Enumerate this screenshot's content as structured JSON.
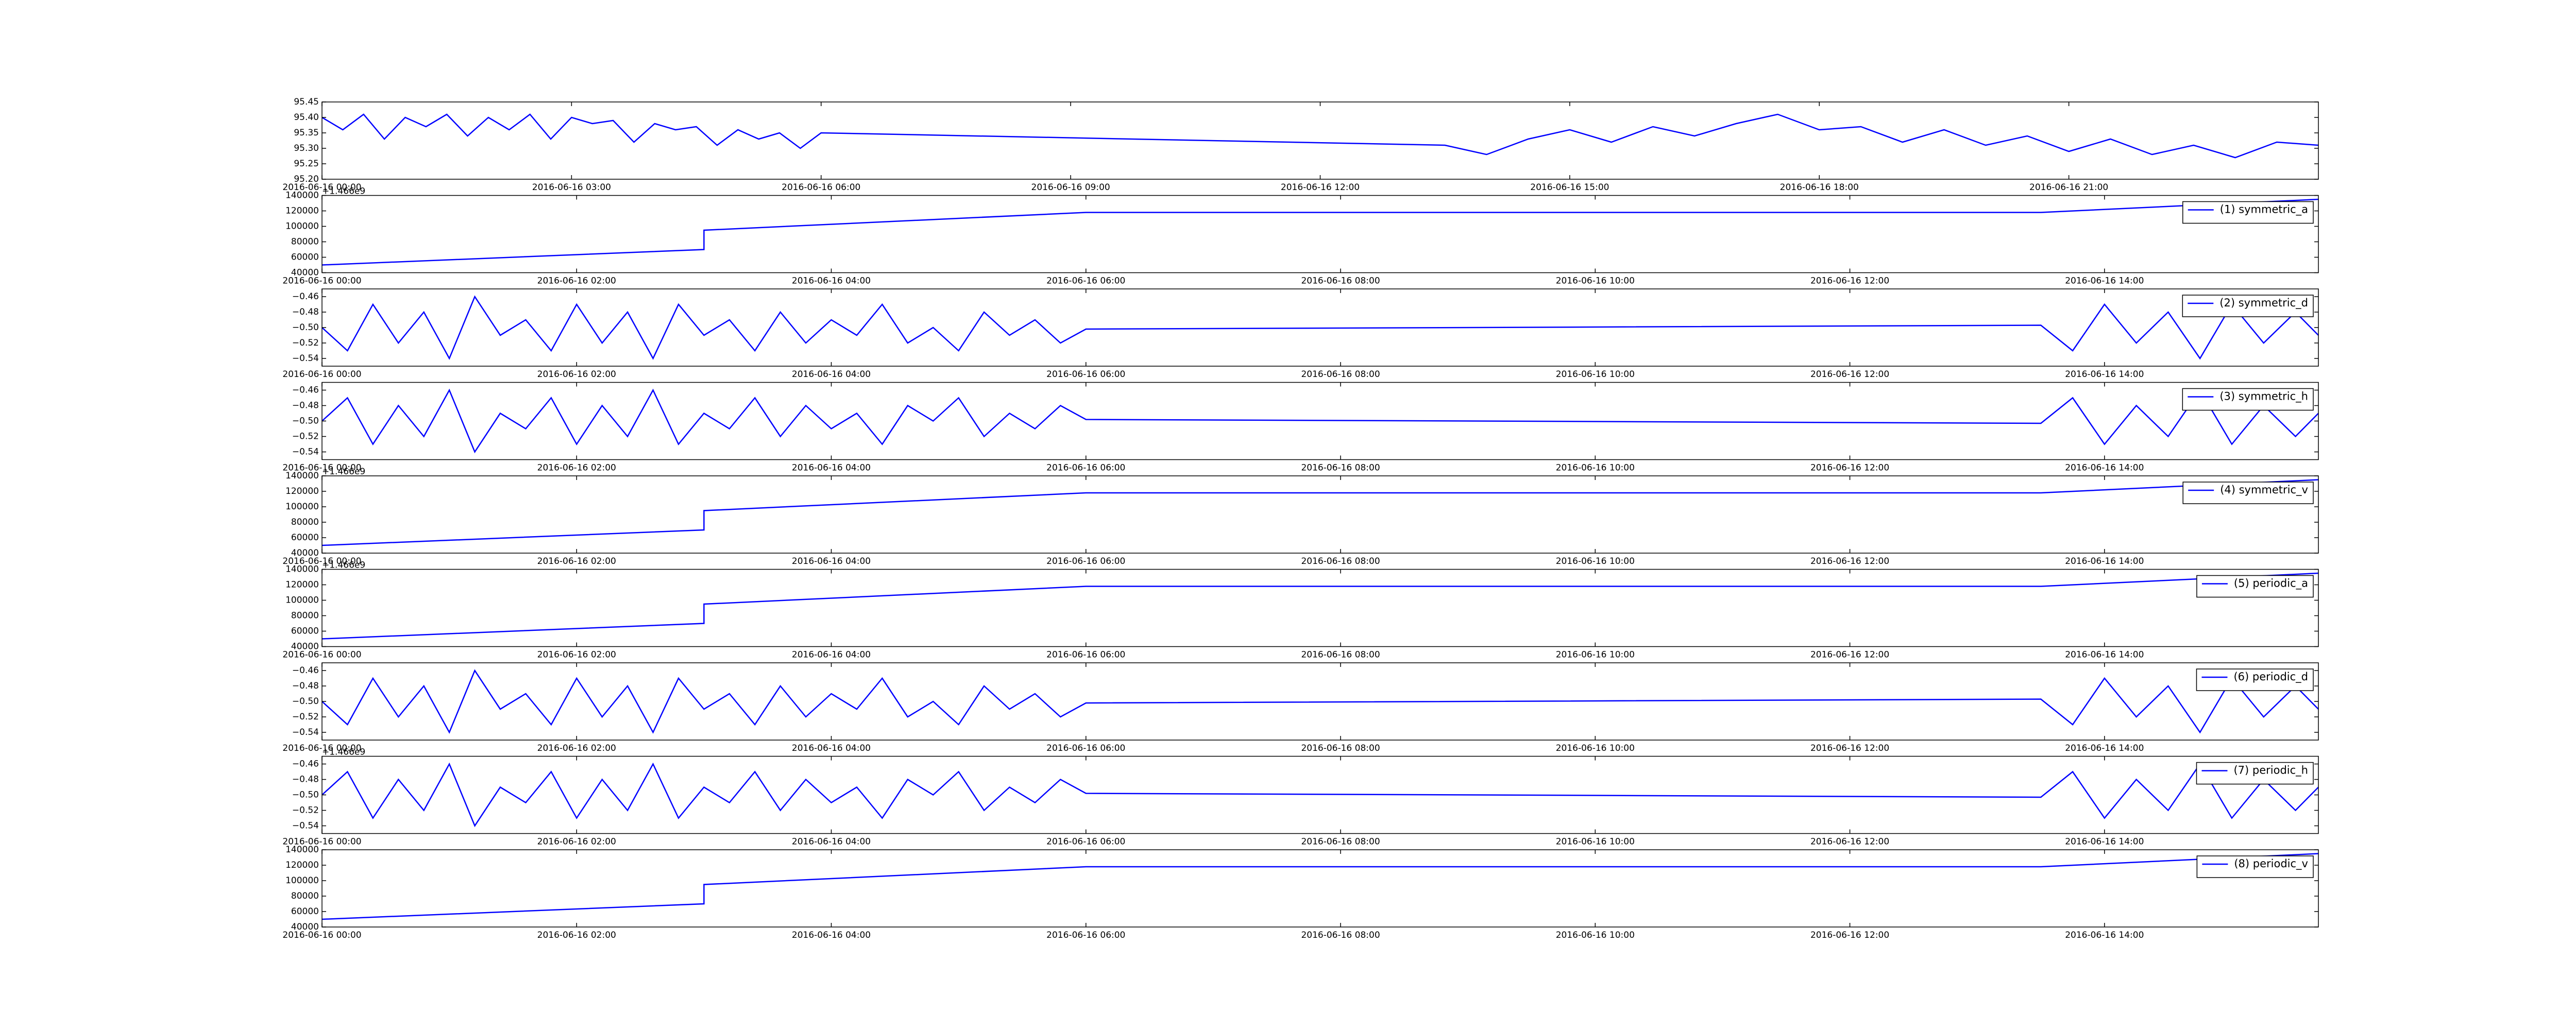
{
  "chart_data": [
    {
      "type": "line",
      "x": [
        0,
        0.25,
        0.5,
        0.75,
        1,
        1.25,
        1.5,
        1.75,
        2,
        2.25,
        2.5,
        2.75,
        3,
        3.25,
        3.5,
        3.75,
        4,
        4.25,
        4.5,
        4.75,
        5,
        5.25,
        5.5,
        5.75,
        6,
        13.5,
        14,
        14.5,
        15,
        15.5,
        16,
        16.5,
        17,
        17.5,
        18,
        18.5,
        19,
        19.5,
        20,
        20.5,
        21,
        21.5,
        22,
        22.5,
        23,
        23.5,
        24
      ],
      "series": [
        {
          "color": "#0000ff",
          "values": [
            95.4,
            95.36,
            95.41,
            95.33,
            95.4,
            95.37,
            95.41,
            95.34,
            95.4,
            95.36,
            95.41,
            95.33,
            95.4,
            95.38,
            95.39,
            95.32,
            95.38,
            95.36,
            95.37,
            95.31,
            95.36,
            95.33,
            95.35,
            95.3,
            95.35,
            95.31,
            95.28,
            95.33,
            95.36,
            95.32,
            95.37,
            95.34,
            95.38,
            95.41,
            95.36,
            95.37,
            95.32,
            95.36,
            95.31,
            95.34,
            95.29,
            95.33,
            95.28,
            95.31,
            95.27,
            95.32,
            95.31
          ]
        }
      ],
      "xlim": [
        0,
        24
      ],
      "ylim": [
        95.2,
        95.45
      ],
      "xticks": [
        {
          "value": 0,
          "label": "2016-06-16 00:00"
        },
        {
          "value": 3,
          "label": "2016-06-16 03:00"
        },
        {
          "value": 6,
          "label": "2016-06-16 06:00"
        },
        {
          "value": 9,
          "label": "2016-06-16 09:00"
        },
        {
          "value": 12,
          "label": "2016-06-16 12:00"
        },
        {
          "value": 15,
          "label": "2016-06-16 15:00"
        },
        {
          "value": 18,
          "label": "2016-06-16 18:00"
        },
        {
          "value": 21,
          "label": "2016-06-16 21:00"
        }
      ],
      "yticks": [
        {
          "value": 95.2,
          "label": "95.20"
        },
        95.25,
        {
          "value": 95.3,
          "label": "95.30"
        },
        95.35,
        {
          "value": 95.4,
          "label": "95.40"
        },
        95.45
      ]
    },
    {
      "type": "line",
      "x": [
        0,
        3,
        3,
        6,
        13.5,
        15.68
      ],
      "offset_text": "+1.466e9",
      "series": [
        {
          "name": "(1) symmetric_a",
          "color": "#0000ff",
          "values": [
            50000,
            70000,
            95000,
            118000,
            118000,
            135000
          ]
        }
      ],
      "xlim": [
        0,
        15.68
      ],
      "ylim": [
        40000,
        140000
      ],
      "xticks": [
        {
          "value": 0,
          "label": "2016-06-16 00:00"
        },
        {
          "value": 2,
          "label": "2016-06-16 02:00"
        },
        {
          "value": 4,
          "label": "2016-06-16 04:00"
        },
        {
          "value": 6,
          "label": "2016-06-16 06:00"
        },
        {
          "value": 8,
          "label": "2016-06-16 08:00"
        },
        {
          "value": 10,
          "label": "2016-06-16 10:00"
        },
        {
          "value": 12,
          "label": "2016-06-16 12:00"
        },
        {
          "value": 14,
          "label": "2016-06-16 14:00"
        }
      ],
      "yticks": [
        40000,
        60000,
        80000,
        100000,
        120000,
        140000
      ],
      "legend": "upper right"
    },
    {
      "type": "line",
      "x": [
        0,
        0.2,
        0.4,
        0.6,
        0.8,
        1,
        1.2,
        1.4,
        1.6,
        1.8,
        2,
        2.2,
        2.4,
        2.6,
        2.8,
        3,
        3.2,
        3.4,
        3.6,
        3.8,
        4,
        4.2,
        4.4,
        4.6,
        4.8,
        5,
        5.2,
        5.4,
        5.6,
        5.8,
        6,
        13.5,
        13.75,
        14,
        14.25,
        14.5,
        14.75,
        15,
        15.25,
        15.5,
        15.68
      ],
      "series": [
        {
          "name": "(2) symmetric_d",
          "color": "#0000ff",
          "values": [
            -0.5,
            -0.53,
            -0.47,
            -0.52,
            -0.48,
            -0.54,
            -0.46,
            -0.51,
            -0.49,
            -0.53,
            -0.47,
            -0.52,
            -0.48,
            -0.54,
            -0.47,
            -0.51,
            -0.49,
            -0.53,
            -0.48,
            -0.52,
            -0.49,
            -0.51,
            -0.47,
            -0.52,
            -0.5,
            -0.53,
            -0.48,
            -0.51,
            -0.49,
            -0.52,
            -0.502,
            -0.497,
            -0.53,
            -0.47,
            -0.52,
            -0.48,
            -0.54,
            -0.47,
            -0.52,
            -0.48,
            -0.51
          ]
        }
      ],
      "xlim": [
        0,
        15.68
      ],
      "ylim": [
        -0.55,
        -0.45
      ],
      "xticks": [
        {
          "value": 0,
          "label": "2016-06-16 00:00"
        },
        {
          "value": 2,
          "label": "2016-06-16 02:00"
        },
        {
          "value": 4,
          "label": "2016-06-16 04:00"
        },
        {
          "value": 6,
          "label": "2016-06-16 06:00"
        },
        {
          "value": 8,
          "label": "2016-06-16 08:00"
        },
        {
          "value": 10,
          "label": "2016-06-16 10:00"
        },
        {
          "value": 12,
          "label": "2016-06-16 12:00"
        },
        {
          "value": 14,
          "label": "2016-06-16 14:00"
        }
      ],
      "yticks": [
        {
          "value": -0.54,
          "label": "−0.54"
        },
        {
          "value": -0.52,
          "label": "−0.52"
        },
        {
          "value": -0.5,
          "label": "−0.50"
        },
        {
          "value": -0.48,
          "label": "−0.48"
        },
        {
          "value": -0.46,
          "label": "−0.46"
        }
      ],
      "legend": "upper right"
    },
    {
      "type": "line",
      "x": [
        0,
        0.2,
        0.4,
        0.6,
        0.8,
        1,
        1.2,
        1.4,
        1.6,
        1.8,
        2,
        2.2,
        2.4,
        2.6,
        2.8,
        3,
        3.2,
        3.4,
        3.6,
        3.8,
        4,
        4.2,
        4.4,
        4.6,
        4.8,
        5,
        5.2,
        5.4,
        5.6,
        5.8,
        6,
        13.5,
        13.75,
        14,
        14.25,
        14.5,
        14.75,
        15,
        15.25,
        15.5,
        15.68
      ],
      "series": [
        {
          "name": "(3) symmetric_h",
          "color": "#0000ff",
          "values": [
            -0.5,
            -0.47,
            -0.53,
            -0.48,
            -0.52,
            -0.46,
            -0.54,
            -0.49,
            -0.51,
            -0.47,
            -0.53,
            -0.48,
            -0.52,
            -0.46,
            -0.53,
            -0.49,
            -0.51,
            -0.47,
            -0.52,
            -0.48,
            -0.51,
            -0.49,
            -0.53,
            -0.48,
            -0.5,
            -0.47,
            -0.52,
            -0.49,
            -0.51,
            -0.48,
            -0.498,
            -0.503,
            -0.47,
            -0.53,
            -0.48,
            -0.52,
            -0.46,
            -0.53,
            -0.48,
            -0.52,
            -0.49
          ]
        }
      ],
      "xlim": [
        0,
        15.68
      ],
      "ylim": [
        -0.55,
        -0.45
      ],
      "xticks": [
        {
          "value": 0,
          "label": "2016-06-16 00:00"
        },
        {
          "value": 2,
          "label": "2016-06-16 02:00"
        },
        {
          "value": 4,
          "label": "2016-06-16 04:00"
        },
        {
          "value": 6,
          "label": "2016-06-16 06:00"
        },
        {
          "value": 8,
          "label": "2016-06-16 08:00"
        },
        {
          "value": 10,
          "label": "2016-06-16 10:00"
        },
        {
          "value": 12,
          "label": "2016-06-16 12:00"
        },
        {
          "value": 14,
          "label": "2016-06-16 14:00"
        }
      ],
      "yticks": [
        {
          "value": -0.54,
          "label": "−0.54"
        },
        {
          "value": -0.52,
          "label": "−0.52"
        },
        {
          "value": -0.5,
          "label": "−0.50"
        },
        {
          "value": -0.48,
          "label": "−0.48"
        },
        {
          "value": -0.46,
          "label": "−0.46"
        }
      ],
      "legend": "upper right"
    },
    {
      "type": "line",
      "x": [
        0,
        3,
        3,
        6,
        13.5,
        15.68
      ],
      "offset_text": "+1.466e9",
      "series": [
        {
          "name": "(4) symmetric_v",
          "color": "#0000ff",
          "values": [
            50000,
            70000,
            95000,
            118000,
            118000,
            135000
          ]
        }
      ],
      "xlim": [
        0,
        15.68
      ],
      "ylim": [
        40000,
        140000
      ],
      "xticks": [
        {
          "value": 0,
          "label": "2016-06-16 00:00"
        },
        {
          "value": 2,
          "label": "2016-06-16 02:00"
        },
        {
          "value": 4,
          "label": "2016-06-16 04:00"
        },
        {
          "value": 6,
          "label": "2016-06-16 06:00"
        },
        {
          "value": 8,
          "label": "2016-06-16 08:00"
        },
        {
          "value": 10,
          "label": "2016-06-16 10:00"
        },
        {
          "value": 12,
          "label": "2016-06-16 12:00"
        },
        {
          "value": 14,
          "label": "2016-06-16 14:00"
        }
      ],
      "yticks": [
        40000,
        60000,
        80000,
        100000,
        120000,
        140000
      ],
      "legend": "upper right"
    },
    {
      "type": "line",
      "x": [
        0,
        3,
        3,
        6,
        13.5,
        15.68
      ],
      "offset_text": "+1.466e9",
      "series": [
        {
          "name": "(5) periodic_a",
          "color": "#0000ff",
          "values": [
            50000,
            70000,
            95000,
            118000,
            118000,
            135000
          ]
        }
      ],
      "xlim": [
        0,
        15.68
      ],
      "ylim": [
        40000,
        140000
      ],
      "xticks": [
        {
          "value": 0,
          "label": "2016-06-16 00:00"
        },
        {
          "value": 2,
          "label": "2016-06-16 02:00"
        },
        {
          "value": 4,
          "label": "2016-06-16 04:00"
        },
        {
          "value": 6,
          "label": "2016-06-16 06:00"
        },
        {
          "value": 8,
          "label": "2016-06-16 08:00"
        },
        {
          "value": 10,
          "label": "2016-06-16 10:00"
        },
        {
          "value": 12,
          "label": "2016-06-16 12:00"
        },
        {
          "value": 14,
          "label": "2016-06-16 14:00"
        }
      ],
      "yticks": [
        40000,
        60000,
        80000,
        100000,
        120000,
        140000
      ],
      "legend": "upper right"
    },
    {
      "type": "line",
      "x": [
        0,
        0.2,
        0.4,
        0.6,
        0.8,
        1,
        1.2,
        1.4,
        1.6,
        1.8,
        2,
        2.2,
        2.4,
        2.6,
        2.8,
        3,
        3.2,
        3.4,
        3.6,
        3.8,
        4,
        4.2,
        4.4,
        4.6,
        4.8,
        5,
        5.2,
        5.4,
        5.6,
        5.8,
        6,
        13.5,
        13.75,
        14,
        14.25,
        14.5,
        14.75,
        15,
        15.25,
        15.5,
        15.68
      ],
      "series": [
        {
          "name": "(6) periodic_d",
          "color": "#0000ff",
          "values": [
            -0.5,
            -0.53,
            -0.47,
            -0.52,
            -0.48,
            -0.54,
            -0.46,
            -0.51,
            -0.49,
            -0.53,
            -0.47,
            -0.52,
            -0.48,
            -0.54,
            -0.47,
            -0.51,
            -0.49,
            -0.53,
            -0.48,
            -0.52,
            -0.49,
            -0.51,
            -0.47,
            -0.52,
            -0.5,
            -0.53,
            -0.48,
            -0.51,
            -0.49,
            -0.52,
            -0.502,
            -0.497,
            -0.53,
            -0.47,
            -0.52,
            -0.48,
            -0.54,
            -0.47,
            -0.52,
            -0.48,
            -0.51
          ]
        }
      ],
      "xlim": [
        0,
        15.68
      ],
      "ylim": [
        -0.55,
        -0.45
      ],
      "xticks": [
        {
          "value": 0,
          "label": "2016-06-16 00:00"
        },
        {
          "value": 2,
          "label": "2016-06-16 02:00"
        },
        {
          "value": 4,
          "label": "2016-06-16 04:00"
        },
        {
          "value": 6,
          "label": "2016-06-16 06:00"
        },
        {
          "value": 8,
          "label": "2016-06-16 08:00"
        },
        {
          "value": 10,
          "label": "2016-06-16 10:00"
        },
        {
          "value": 12,
          "label": "2016-06-16 12:00"
        },
        {
          "value": 14,
          "label": "2016-06-16 14:00"
        }
      ],
      "yticks": [
        {
          "value": -0.54,
          "label": "−0.54"
        },
        {
          "value": -0.52,
          "label": "−0.52"
        },
        {
          "value": -0.5,
          "label": "−0.50"
        },
        {
          "value": -0.48,
          "label": "−0.48"
        },
        {
          "value": -0.46,
          "label": "−0.46"
        }
      ],
      "legend": "upper right"
    },
    {
      "type": "line",
      "x": [
        0,
        0.2,
        0.4,
        0.6,
        0.8,
        1,
        1.2,
        1.4,
        1.6,
        1.8,
        2,
        2.2,
        2.4,
        2.6,
        2.8,
        3,
        3.2,
        3.4,
        3.6,
        3.8,
        4,
        4.2,
        4.4,
        4.6,
        4.8,
        5,
        5.2,
        5.4,
        5.6,
        5.8,
        6,
        13.5,
        13.75,
        14,
        14.25,
        14.5,
        14.75,
        15,
        15.25,
        15.5,
        15.68
      ],
      "offset_text": "+1.466e9",
      "series": [
        {
          "name": "(7) periodic_h",
          "color": "#0000ff",
          "values": [
            -0.5,
            -0.47,
            -0.53,
            -0.48,
            -0.52,
            -0.46,
            -0.54,
            -0.49,
            -0.51,
            -0.47,
            -0.53,
            -0.48,
            -0.52,
            -0.46,
            -0.53,
            -0.49,
            -0.51,
            -0.47,
            -0.52,
            -0.48,
            -0.51,
            -0.49,
            -0.53,
            -0.48,
            -0.5,
            -0.47,
            -0.52,
            -0.49,
            -0.51,
            -0.48,
            -0.498,
            -0.503,
            -0.47,
            -0.53,
            -0.48,
            -0.52,
            -0.46,
            -0.53,
            -0.48,
            -0.52,
            -0.49
          ]
        }
      ],
      "xlim": [
        0,
        15.68
      ],
      "ylim": [
        -0.55,
        -0.45
      ],
      "xticks": [
        {
          "value": 0,
          "label": "2016-06-16 00:00"
        },
        {
          "value": 2,
          "label": "2016-06-16 02:00"
        },
        {
          "value": 4,
          "label": "2016-06-16 04:00"
        },
        {
          "value": 6,
          "label": "2016-06-16 06:00"
        },
        {
          "value": 8,
          "label": "2016-06-16 08:00"
        },
        {
          "value": 10,
          "label": "2016-06-16 10:00"
        },
        {
          "value": 12,
          "label": "2016-06-16 12:00"
        },
        {
          "value": 14,
          "label": "2016-06-16 14:00"
        }
      ],
      "yticks": [
        {
          "value": -0.54,
          "label": "−0.54"
        },
        {
          "value": -0.52,
          "label": "−0.52"
        },
        {
          "value": -0.5,
          "label": "−0.50"
        },
        {
          "value": -0.48,
          "label": "−0.48"
        },
        {
          "value": -0.46,
          "label": "−0.46"
        }
      ],
      "legend": "upper right"
    },
    {
      "type": "line",
      "x": [
        0,
        3,
        3,
        6,
        13.5,
        15.68
      ],
      "series": [
        {
          "name": "(8) periodic_v",
          "color": "#0000ff",
          "values": [
            50000,
            70000,
            95000,
            118000,
            118000,
            135000
          ]
        }
      ],
      "xlim": [
        0,
        15.68
      ],
      "ylim": [
        40000,
        140000
      ],
      "xticks": [
        {
          "value": 0,
          "label": "2016-06-16 00:00"
        },
        {
          "value": 2,
          "label": "2016-06-16 02:00"
        },
        {
          "value": 4,
          "label": "2016-06-16 04:00"
        },
        {
          "value": 6,
          "label": "2016-06-16 06:00"
        },
        {
          "value": 8,
          "label": "2016-06-16 08:00"
        },
        {
          "value": 10,
          "label": "2016-06-16 10:00"
        },
        {
          "value": 12,
          "label": "2016-06-16 12:00"
        },
        {
          "value": 14,
          "label": "2016-06-16 14:00"
        }
      ],
      "yticks": [
        40000,
        60000,
        80000,
        100000,
        120000,
        140000
      ],
      "legend": "upper right"
    }
  ]
}
